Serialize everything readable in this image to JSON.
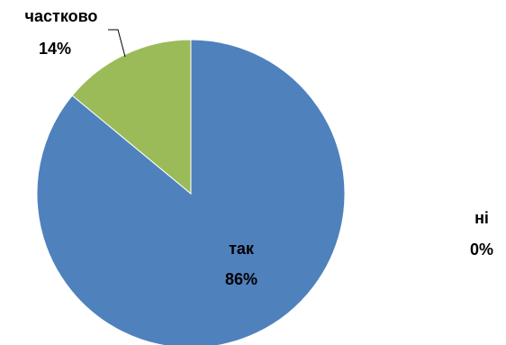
{
  "chart_data": {
    "type": "pie",
    "categories": [
      "так",
      "ні",
      "частково"
    ],
    "values": [
      86,
      0,
      14
    ],
    "data_labels": [
      {
        "category": "так",
        "value_label": "86%"
      },
      {
        "category": "ні",
        "value_label": "0%"
      },
      {
        "category": "частково",
        "value_label": "14%"
      }
    ],
    "colors": [
      "#4F81BD",
      "#C0504D",
      "#9BBB59"
    ],
    "start_angle_deg": 0,
    "direction": "clockwise",
    "legend": "none"
  }
}
